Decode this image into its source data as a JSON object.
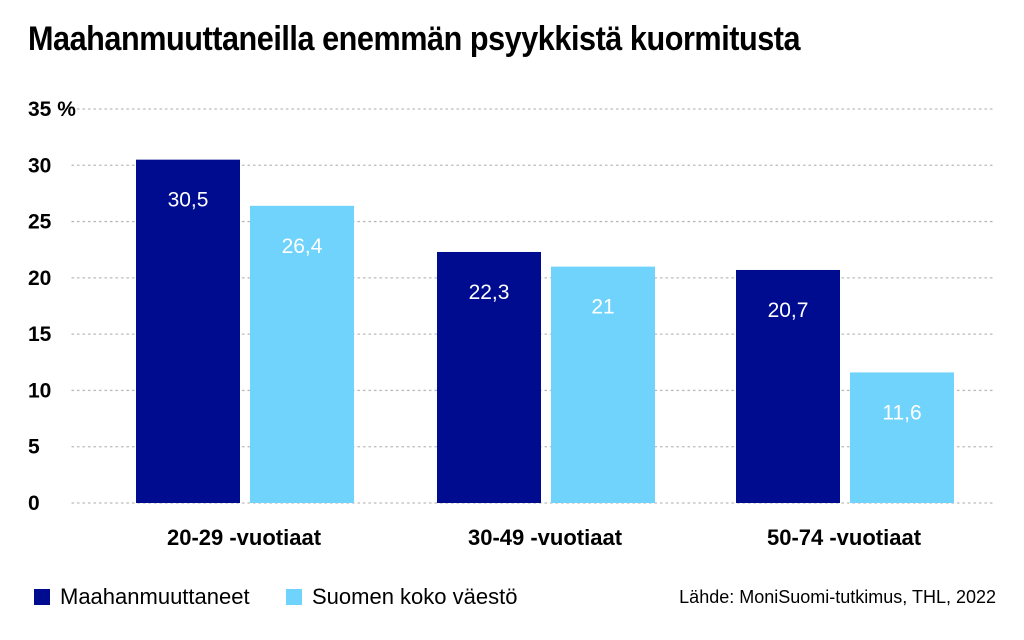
{
  "chart_data": {
    "type": "bar",
    "title": "Maahanmuuttaneilla enemmän psyykkistä kuormitusta",
    "categories": [
      "20-29 -vuotiaat",
      "30-49 -vuotiaat",
      "50-74 -vuotiaat"
    ],
    "series": [
      {
        "name": "Maahanmuuttaneet",
        "values": [
          30.5,
          22.3,
          20.7
        ],
        "labels": [
          "30,5",
          "22,3",
          "20,7"
        ],
        "color": "#000c8f"
      },
      {
        "name": "Suomen koko väestö",
        "values": [
          26.4,
          21,
          11.6
        ],
        "labels": [
          "26,4",
          "21",
          "11,6"
        ],
        "color": "#6fd3fb"
      }
    ],
    "y_ticks": [
      0,
      5,
      10,
      15,
      20,
      25,
      30,
      35
    ],
    "y_tick_labels": [
      "0",
      "5",
      "10",
      "15",
      "20",
      "25",
      "30",
      "35 %"
    ],
    "ylim": [
      0,
      35
    ],
    "grid": true,
    "legend_position": "bottom-left",
    "source": "Lähde: MoniSuomi-tutkimus, THL, 2022"
  }
}
